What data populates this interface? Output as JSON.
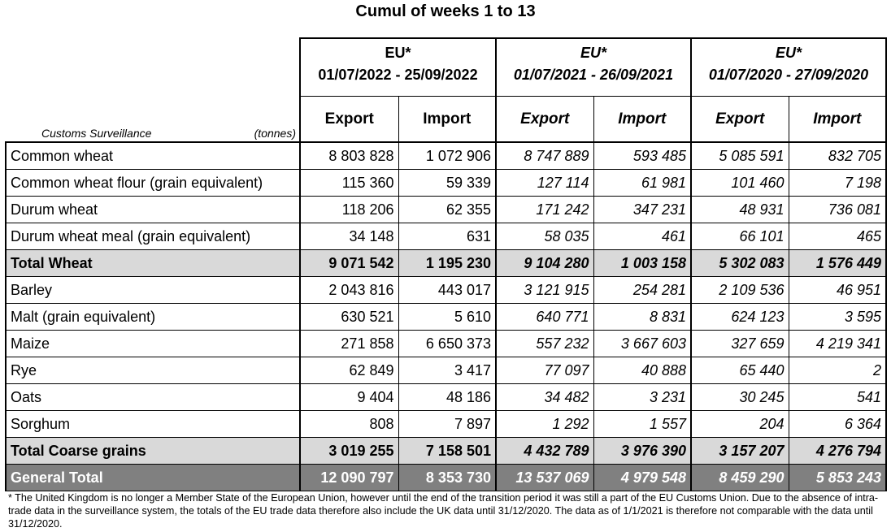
{
  "title": "Cumul of weeks 1 to 13",
  "corner": {
    "label": "Customs Surveillance",
    "unit": "(tonnes)"
  },
  "periods": [
    {
      "region": "EU*",
      "dates": "01/07/2022 - 25/09/2022",
      "export": "Export",
      "import": "Import"
    },
    {
      "region": "EU*",
      "dates": "01/07/2021 - 26/09/2021",
      "export": "Export",
      "import": "Import"
    },
    {
      "region": "EU*",
      "dates": "01/07/2020 - 27/09/2020",
      "export": "Export",
      "import": "Import"
    }
  ],
  "rows": [
    {
      "label": "Common wheat",
      "values": [
        "8 803 828",
        "1 072 906",
        "8 747 889",
        "593 485",
        "5 085 591",
        "832 705"
      ]
    },
    {
      "label": "Common wheat flour (grain equivalent)",
      "values": [
        "115 360",
        "59 339",
        "127 114",
        "61 981",
        "101 460",
        "7 198"
      ]
    },
    {
      "label": "Durum wheat",
      "values": [
        "118 206",
        "62 355",
        "171 242",
        "347 231",
        "48 931",
        "736 081"
      ]
    },
    {
      "label": "Durum wheat meal (grain equivalent)",
      "values": [
        "34 148",
        "631",
        "58 035",
        "461",
        "66 101",
        "465"
      ]
    },
    {
      "label": "Total Wheat",
      "values": [
        "9 071 542",
        "1 195 230",
        "9 104 280",
        "1 003 158",
        "5 302 083",
        "1 576 449"
      ]
    },
    {
      "label": "Barley",
      "values": [
        "2 043 816",
        "443 017",
        "3 121 915",
        "254 281",
        "2 109 536",
        "46 951"
      ]
    },
    {
      "label": "Malt (grain equivalent)",
      "values": [
        "630 521",
        "5 610",
        "640 771",
        "8 831",
        "624 123",
        "3 595"
      ]
    },
    {
      "label": "Maize",
      "values": [
        "271 858",
        "6 650 373",
        "557 232",
        "3 667 603",
        "327 659",
        "4 219 341"
      ]
    },
    {
      "label": "Rye",
      "values": [
        "62 849",
        "3 417",
        "77 097",
        "40 888",
        "65 440",
        "2"
      ]
    },
    {
      "label": "Oats",
      "values": [
        "9 404",
        "48 186",
        "34 482",
        "3 231",
        "30 245",
        "541"
      ]
    },
    {
      "label": "Sorghum",
      "values": [
        "808",
        "7 897",
        "1 292",
        "1 557",
        "204",
        "6 364"
      ]
    },
    {
      "label": "Total Coarse grains",
      "values": [
        "3 019 255",
        "7 158 501",
        "4 432 789",
        "3 976 390",
        "3 157 207",
        "4 276 794"
      ]
    },
    {
      "label": "General Total",
      "values": [
        "12 090 797",
        "8 353 730",
        "13 537 069",
        "4 979 548",
        "8 459 290",
        "5 853 243"
      ]
    }
  ],
  "footnote": "* The United Kingdom is no longer a Member State of the European Union, however until the end of the transition period it was still a part of the EU Customs Union. Due to the absence of intra-trade data in the surveillance system, the totals of the EU trade data  therefore also include the UK data until 31/12/2020. The data as of 1/1/2021 is therefore not comparable with the data until 31/12/2020."
}
